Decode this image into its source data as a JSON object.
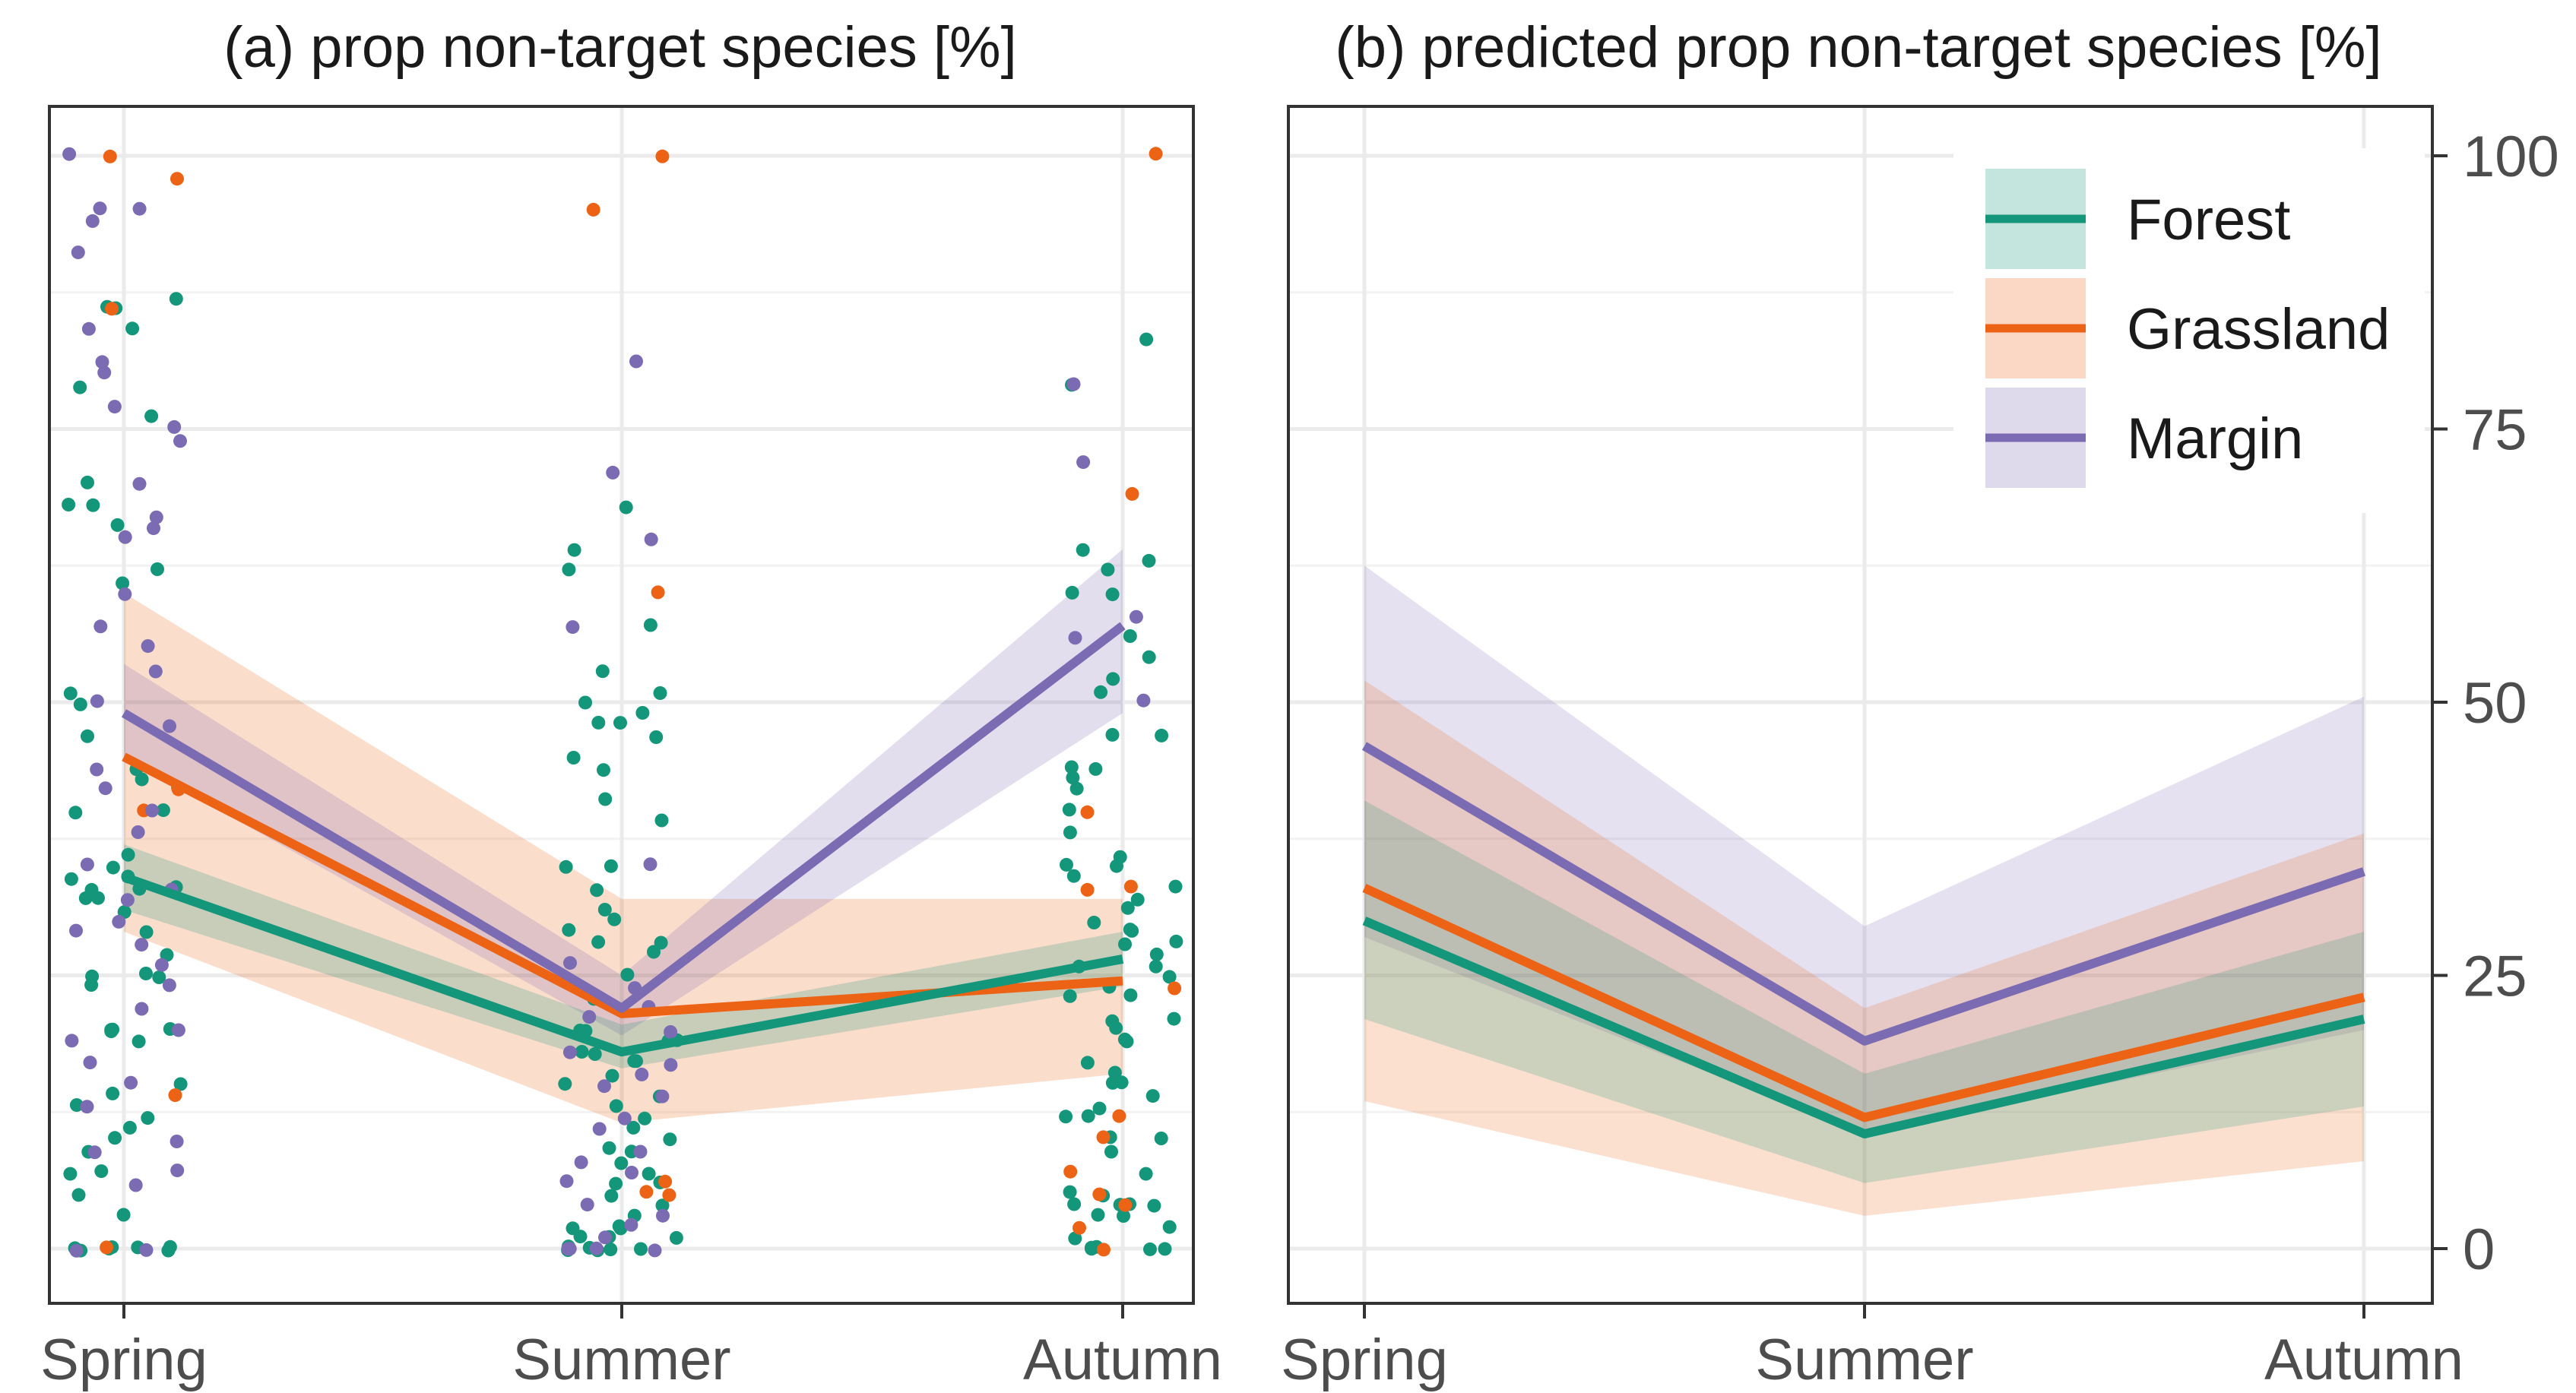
{
  "chart_data": [
    {
      "type": "line",
      "title": "(a) prop non-target species [%]",
      "categories": [
        "Spring",
        "Summer",
        "Autumn"
      ],
      "xlabel": "",
      "ylabel": "",
      "ylim": [
        -10,
        110
      ],
      "y_ticks_shown": false,
      "grid": true,
      "series": [
        {
          "name": "Forest",
          "color": "#14967a",
          "values": [
            34,
            18,
            26.5
          ],
          "ci_low": [
            31,
            16.5,
            24
          ],
          "ci_high": [
            37,
            20.5,
            29
          ]
        },
        {
          "name": "Grassland",
          "color": "#ec6316",
          "values": [
            45,
            21.5,
            24.5
          ],
          "ci_low": [
            29,
            11.5,
            16
          ],
          "ci_high": [
            60,
            32,
            32
          ]
        },
        {
          "name": "Margin",
          "color": "#7b6bb3",
          "values": [
            49,
            22,
            57
          ],
          "ci_low": [
            45,
            19.5,
            49
          ],
          "ci_high": [
            53.5,
            25,
            64
          ]
        }
      ],
      "points": {
        "Forest": {
          "Spring": [
            0,
            0,
            0,
            0,
            0,
            0,
            0,
            3,
            5,
            7,
            7,
            9,
            10,
            11,
            12,
            13,
            14,
            15,
            19,
            20,
            20,
            20,
            20,
            24,
            25,
            25,
            25,
            27,
            29,
            31,
            32,
            32,
            33,
            33,
            33,
            34,
            34,
            35,
            36,
            40,
            40,
            42,
            43,
            44,
            47,
            50,
            51,
            61,
            62,
            66,
            68,
            68,
            70,
            76,
            79,
            84,
            86,
            86,
            87
          ],
          "Summer": [
            0,
            0,
            0,
            0,
            0,
            0,
            1,
            1,
            1,
            2,
            2,
            2,
            3,
            4,
            5,
            6,
            6,
            7,
            8,
            9,
            9,
            10,
            11,
            12,
            13,
            14,
            15,
            16,
            17,
            17,
            18,
            18,
            19,
            19,
            20,
            20,
            23,
            25,
            27,
            28,
            28,
            29,
            30,
            31,
            33,
            35,
            35,
            39,
            41,
            44,
            45,
            47,
            48,
            48,
            49,
            50,
            51,
            53,
            57,
            62,
            64,
            68
          ],
          "Autumn": [
            0,
            0,
            0,
            0,
            0,
            1,
            2,
            3,
            3,
            4,
            4,
            4,
            4,
            5,
            5,
            7,
            9,
            10,
            10,
            12,
            12,
            13,
            14,
            15,
            15,
            16,
            17,
            19,
            19,
            20,
            21,
            21,
            23,
            23,
            24,
            25,
            26,
            26,
            27,
            28,
            28,
            29,
            29,
            30,
            31,
            32,
            33,
            34,
            35,
            35,
            36,
            38,
            40,
            42,
            43,
            44,
            44,
            47,
            47,
            51,
            52,
            54,
            56,
            60,
            60,
            62,
            63,
            64,
            79,
            83
          ]
        },
        "Grassland": {
          "Spring": [
            0,
            14,
            40,
            42,
            86,
            98,
            100
          ],
          "Summer": [
            5,
            5,
            6,
            95,
            100,
            60
          ],
          "Autumn": [
            0,
            2,
            4,
            5,
            7,
            10,
            12,
            24,
            33,
            33,
            40,
            69,
            100
          ]
        },
        "Margin": {
          "Spring": [
            0,
            0,
            6,
            7,
            9,
            10,
            13,
            15,
            17,
            19,
            20,
            22,
            24,
            26,
            28,
            29,
            30,
            32,
            33,
            35,
            38,
            40,
            42,
            44,
            48,
            50,
            53,
            55,
            57,
            60,
            65,
            66,
            67,
            70,
            74,
            75,
            77,
            80,
            81,
            84,
            91,
            94,
            95,
            95,
            100
          ],
          "Summer": [
            0,
            0,
            0,
            0,
            1,
            2,
            3,
            4,
            6,
            7,
            8,
            9,
            11,
            12,
            14,
            15,
            16,
            17,
            18,
            20,
            21,
            22,
            24,
            26,
            35,
            57,
            65,
            71,
            81
          ],
          "Autumn": [
            50,
            56,
            58,
            72,
            79
          ]
        }
      }
    },
    {
      "type": "line",
      "title": "(b) predicted prop non-target species [%]",
      "categories": [
        "Spring",
        "Summer",
        "Autumn"
      ],
      "xlabel": "",
      "ylabel": "",
      "ylim": [
        -5,
        105
      ],
      "yticks": [
        0,
        25,
        50,
        75,
        100
      ],
      "y_axis_position": "right",
      "grid": true,
      "legend_position": "top-right",
      "series": [
        {
          "name": "Forest",
          "color": "#14967a",
          "values": [
            30,
            10.5,
            21
          ],
          "ci_low": [
            21,
            6,
            13
          ],
          "ci_high": [
            41,
            16,
            29
          ]
        },
        {
          "name": "Grassland",
          "color": "#ec6316",
          "values": [
            33,
            12,
            23
          ],
          "ci_low": [
            13.5,
            3,
            8
          ],
          "ci_high": [
            52,
            22,
            38
          ]
        },
        {
          "name": "Margin",
          "color": "#7b6bb3",
          "values": [
            46,
            19,
            34.5
          ],
          "ci_low": [
            28.5,
            10.5,
            20
          ],
          "ci_high": [
            62.5,
            29.5,
            50.5
          ]
        }
      ]
    }
  ]
}
